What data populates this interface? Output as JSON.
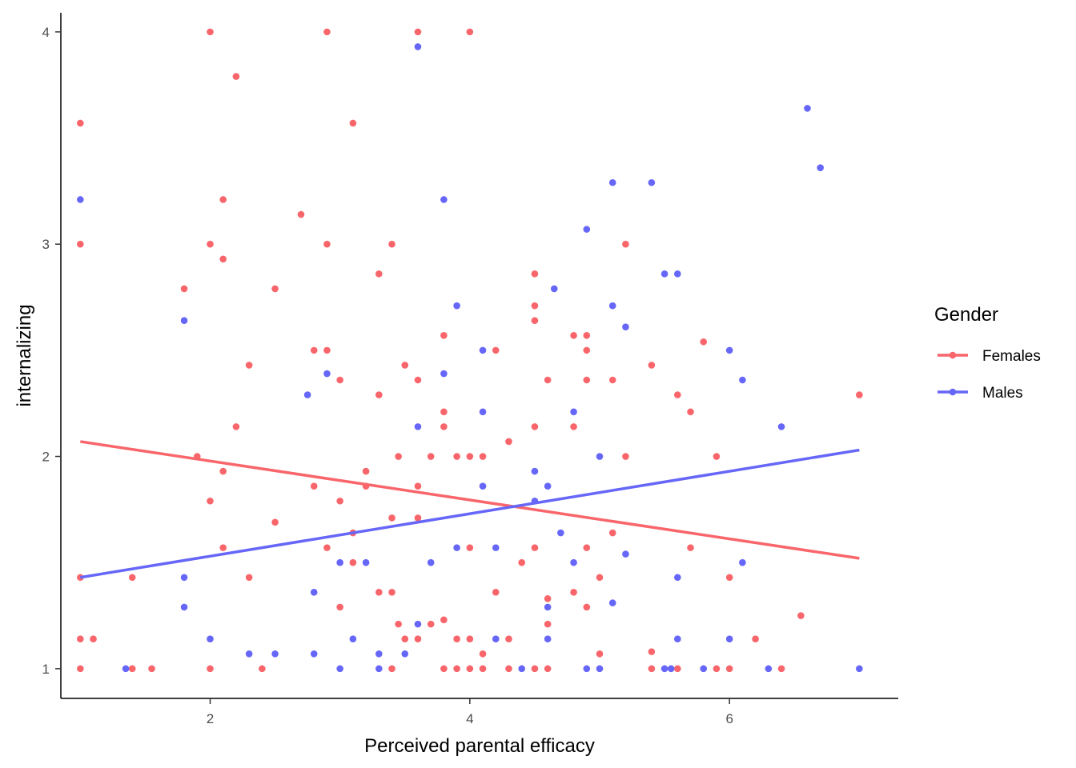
{
  "chart_data": {
    "type": "scatter",
    "title": "",
    "xlabel": "Perceived parental efficacy",
    "ylabel": "internalizing",
    "xlim": [
      0.85,
      7.3
    ],
    "ylim": [
      0.86,
      4.09
    ],
    "xticks": [
      2,
      4,
      6
    ],
    "yticks": [
      1,
      2,
      3,
      4
    ],
    "grid": false,
    "legend": {
      "title": "Gender",
      "position": "right",
      "entries": [
        {
          "label": "Females",
          "color": "#f8666b"
        },
        {
          "label": "Males",
          "color": "#6666f8"
        }
      ]
    },
    "series": [
      {
        "name": "Females",
        "color": "#f8666b",
        "fit_line": {
          "x": [
            1.0,
            7.0
          ],
          "y": [
            2.07,
            1.52
          ]
        },
        "points": [
          [
            1.0,
            3.57
          ],
          [
            1.0,
            3.0
          ],
          [
            1.0,
            1.43
          ],
          [
            1.0,
            1.14
          ],
          [
            1.0,
            1.0
          ],
          [
            1.1,
            1.14
          ],
          [
            1.4,
            1.43
          ],
          [
            1.4,
            1.0
          ],
          [
            1.55,
            1.0
          ],
          [
            1.8,
            2.79
          ],
          [
            1.9,
            2.0
          ],
          [
            2.0,
            4.0
          ],
          [
            2.0,
            3.0
          ],
          [
            2.0,
            1.79
          ],
          [
            2.0,
            1.0
          ],
          [
            2.1,
            3.21
          ],
          [
            2.1,
            2.93
          ],
          [
            2.1,
            1.93
          ],
          [
            2.1,
            1.57
          ],
          [
            2.2,
            3.79
          ],
          [
            2.2,
            2.14
          ],
          [
            2.3,
            2.43
          ],
          [
            2.3,
            1.43
          ],
          [
            2.4,
            1.0
          ],
          [
            2.5,
            2.79
          ],
          [
            2.5,
            1.69
          ],
          [
            2.7,
            3.14
          ],
          [
            2.8,
            2.5
          ],
          [
            2.8,
            1.86
          ],
          [
            2.9,
            4.0
          ],
          [
            2.9,
            3.0
          ],
          [
            2.9,
            2.5
          ],
          [
            2.9,
            1.57
          ],
          [
            3.0,
            2.36
          ],
          [
            3.0,
            1.79
          ],
          [
            3.0,
            1.29
          ],
          [
            3.1,
            3.57
          ],
          [
            3.1,
            1.64
          ],
          [
            3.1,
            1.5
          ],
          [
            3.2,
            1.93
          ],
          [
            3.2,
            1.86
          ],
          [
            3.3,
            2.86
          ],
          [
            3.3,
            2.29
          ],
          [
            3.3,
            1.36
          ],
          [
            3.4,
            3.0
          ],
          [
            3.4,
            1.71
          ],
          [
            3.4,
            1.36
          ],
          [
            3.4,
            1.0
          ],
          [
            3.45,
            2.0
          ],
          [
            3.45,
            1.21
          ],
          [
            3.5,
            2.43
          ],
          [
            3.5,
            1.14
          ],
          [
            3.6,
            4.0
          ],
          [
            3.6,
            2.36
          ],
          [
            3.6,
            1.86
          ],
          [
            3.6,
            1.71
          ],
          [
            3.6,
            1.14
          ],
          [
            3.7,
            2.0
          ],
          [
            3.7,
            1.21
          ],
          [
            3.8,
            2.57
          ],
          [
            3.8,
            2.21
          ],
          [
            3.8,
            2.14
          ],
          [
            3.8,
            1.23
          ],
          [
            3.8,
            1.0
          ],
          [
            3.9,
            2.0
          ],
          [
            3.9,
            1.14
          ],
          [
            3.9,
            1.0
          ],
          [
            4.0,
            4.0
          ],
          [
            4.0,
            2.0
          ],
          [
            4.0,
            1.57
          ],
          [
            4.0,
            1.14
          ],
          [
            4.0,
            1.0
          ],
          [
            4.1,
            2.0
          ],
          [
            4.1,
            1.07
          ],
          [
            4.1,
            1.0
          ],
          [
            4.2,
            2.5
          ],
          [
            4.2,
            1.36
          ],
          [
            4.3,
            2.07
          ],
          [
            4.3,
            1.14
          ],
          [
            4.3,
            1.0
          ],
          [
            4.4,
            1.5
          ],
          [
            4.5,
            2.86
          ],
          [
            4.5,
            2.71
          ],
          [
            4.5,
            2.64
          ],
          [
            4.5,
            2.14
          ],
          [
            4.5,
            1.57
          ],
          [
            4.5,
            1.0
          ],
          [
            4.6,
            2.36
          ],
          [
            4.6,
            1.33
          ],
          [
            4.6,
            1.21
          ],
          [
            4.6,
            1.0
          ],
          [
            4.8,
            2.57
          ],
          [
            4.8,
            2.14
          ],
          [
            4.8,
            1.36
          ],
          [
            4.9,
            2.57
          ],
          [
            4.9,
            2.5
          ],
          [
            4.9,
            2.36
          ],
          [
            4.9,
            1.57
          ],
          [
            4.9,
            1.29
          ],
          [
            5.0,
            1.43
          ],
          [
            5.0,
            1.07
          ],
          [
            5.1,
            2.36
          ],
          [
            5.1,
            1.64
          ],
          [
            5.2,
            3.0
          ],
          [
            5.2,
            2.0
          ],
          [
            5.4,
            2.43
          ],
          [
            5.4,
            1.08
          ],
          [
            5.4,
            1.0
          ],
          [
            5.6,
            2.29
          ],
          [
            5.6,
            1.0
          ],
          [
            5.7,
            2.21
          ],
          [
            5.7,
            1.57
          ],
          [
            5.8,
            2.54
          ],
          [
            5.9,
            2.0
          ],
          [
            5.9,
            1.0
          ],
          [
            6.0,
            1.43
          ],
          [
            6.0,
            1.0
          ],
          [
            6.2,
            1.14
          ],
          [
            6.4,
            1.0
          ],
          [
            6.55,
            1.25
          ],
          [
            7.0,
            2.29
          ]
        ]
      },
      {
        "name": "Males",
        "color": "#6666f8",
        "fit_line": {
          "x": [
            1.0,
            7.0
          ],
          "y": [
            1.43,
            2.03
          ]
        },
        "points": [
          [
            1.0,
            3.21
          ],
          [
            1.35,
            1.0
          ],
          [
            1.8,
            2.64
          ],
          [
            1.8,
            1.43
          ],
          [
            1.8,
            1.29
          ],
          [
            2.0,
            1.14
          ],
          [
            2.3,
            1.07
          ],
          [
            2.5,
            1.07
          ],
          [
            2.75,
            2.29
          ],
          [
            2.8,
            1.36
          ],
          [
            2.8,
            1.07
          ],
          [
            2.9,
            2.39
          ],
          [
            3.0,
            1.5
          ],
          [
            3.0,
            1.0
          ],
          [
            3.1,
            1.14
          ],
          [
            3.2,
            1.5
          ],
          [
            3.3,
            1.07
          ],
          [
            3.3,
            1.0
          ],
          [
            3.5,
            1.07
          ],
          [
            3.6,
            3.93
          ],
          [
            3.6,
            2.14
          ],
          [
            3.6,
            1.21
          ],
          [
            3.7,
            1.5
          ],
          [
            3.8,
            3.21
          ],
          [
            3.8,
            2.39
          ],
          [
            3.9,
            2.71
          ],
          [
            3.9,
            1.57
          ],
          [
            4.1,
            2.5
          ],
          [
            4.1,
            2.21
          ],
          [
            4.1,
            1.86
          ],
          [
            4.2,
            1.57
          ],
          [
            4.2,
            1.14
          ],
          [
            4.4,
            1.0
          ],
          [
            4.5,
            1.93
          ],
          [
            4.5,
            1.79
          ],
          [
            4.6,
            1.86
          ],
          [
            4.6,
            1.29
          ],
          [
            4.6,
            1.14
          ],
          [
            4.65,
            2.79
          ],
          [
            4.7,
            1.64
          ],
          [
            4.8,
            2.21
          ],
          [
            4.8,
            1.5
          ],
          [
            4.9,
            3.07
          ],
          [
            4.9,
            1.0
          ],
          [
            5.0,
            2.0
          ],
          [
            5.0,
            1.0
          ],
          [
            5.1,
            3.29
          ],
          [
            5.1,
            2.71
          ],
          [
            5.1,
            1.31
          ],
          [
            5.2,
            2.61
          ],
          [
            5.2,
            1.54
          ],
          [
            5.4,
            3.29
          ],
          [
            5.5,
            2.86
          ],
          [
            5.5,
            1.0
          ],
          [
            5.55,
            1.0
          ],
          [
            5.6,
            2.86
          ],
          [
            5.6,
            1.43
          ],
          [
            5.6,
            1.14
          ],
          [
            5.8,
            1.0
          ],
          [
            6.0,
            2.5
          ],
          [
            6.0,
            1.14
          ],
          [
            6.1,
            2.36
          ],
          [
            6.1,
            1.5
          ],
          [
            6.3,
            1.0
          ],
          [
            6.4,
            2.14
          ],
          [
            6.6,
            3.64
          ],
          [
            6.7,
            3.36
          ],
          [
            7.0,
            1.0
          ]
        ]
      }
    ]
  }
}
